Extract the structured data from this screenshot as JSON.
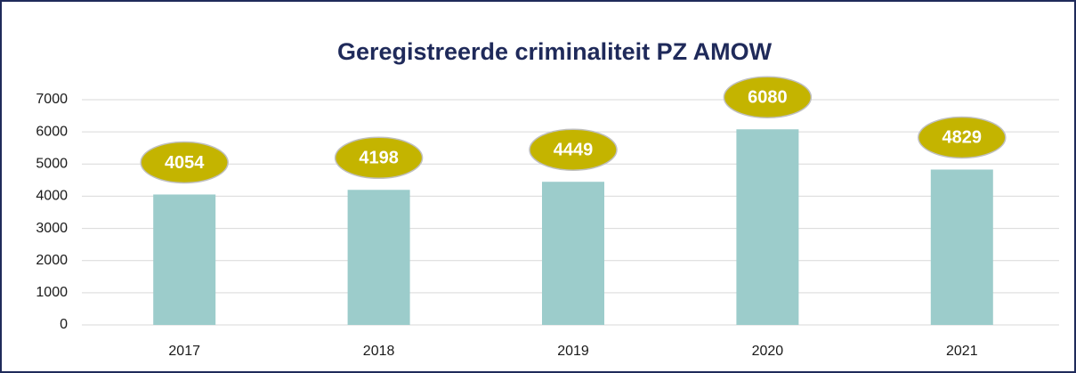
{
  "chart_data": {
    "type": "bar",
    "title": "Geregistreerde criminaliteit PZ AMOW",
    "categories": [
      "2017",
      "2018",
      "2019",
      "2020",
      "2021"
    ],
    "values": [
      4054,
      4198,
      4449,
      6080,
      4829
    ],
    "color": "#9ccccb",
    "label_color": "#c4b400",
    "ylim": [
      0,
      7000
    ],
    "yticks": [
      0,
      1000,
      2000,
      3000,
      4000,
      5000,
      6000,
      7000
    ],
    "grid": true
  }
}
